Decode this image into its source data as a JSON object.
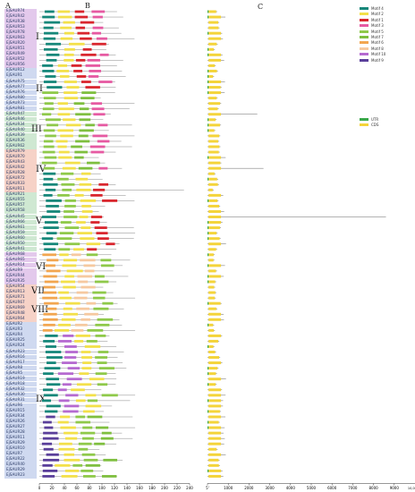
{
  "panels": {
    "a": "A",
    "b": "B",
    "c": "C"
  },
  "genes": [
    "EjSAUR74",
    "EjSAUR42",
    "EjSAUR38",
    "EjSAUR53",
    "EjSAUR78",
    "EjSAUR63",
    "EjSAUR20",
    "EjSAUR51",
    "EjSAUR49",
    "EjSAUR52",
    "EjSAUR56",
    "EjSAUR12",
    "EjSAUR1",
    "EjSAUR75",
    "EjSAUR77",
    "EjSAUR76",
    "EjSAUR80",
    "EjSAUR73",
    "EjSAUR81",
    "EjSAUR47",
    "EjSAUR46",
    "EjSAUR34",
    "EjSAUR40",
    "EjSAUR39",
    "EjSAUR36",
    "EjSAUR62",
    "EjSAUR79",
    "EjSAUR70",
    "EjSAUR43",
    "EjSAUR42",
    "EjSAUR28",
    "EjSAUR72",
    "EjSAUR33",
    "EjSAUR11",
    "EjSAUR21",
    "EjSAUR55",
    "EjSAUR57",
    "EjSAUR58",
    "EjSAUR45",
    "EjSAUR66",
    "EjSAUR61",
    "EjSAUR59",
    "EjSAUR60",
    "EjSAUR50",
    "EjSAUR41",
    "EjSAUR68",
    "EjSAUR65",
    "EjSAUR14",
    "EjSAUR9",
    "EjSAUR44",
    "EjSAUR35",
    "EjSAUR54",
    "EjSAUR13",
    "EjSAUR71",
    "EjSAUR67",
    "EjSAUR69",
    "EjSAUR48",
    "EjSAUR64",
    "EjSAUR2",
    "EjSAUR3",
    "EjSAUR4",
    "EjSAUR25",
    "EjSAUR24",
    "EjSAUR23",
    "EjSAUR16",
    "EjSAUR17",
    "EjSAUR8",
    "EjSAUR5",
    "EjSAUR19",
    "EjSAUR18",
    "EjSAUR32",
    "EjSAUR30",
    "EjSAUR31",
    "EjSAUR6",
    "EjSAUR15",
    "EjSAUR34",
    "EjSAUR26",
    "EjSAUR27",
    "EjSAUR28",
    "EjSAUR11",
    "EjSAUR29",
    "EjSAUR10",
    "EjSAUR7",
    "EjSAUR22",
    "EjSAUR40",
    "EjSAUR29",
    "EjSAUR23"
  ],
  "groups": [
    {
      "label": "I",
      "start": 0,
      "end": 11,
      "color": "#e3c9ec"
    },
    {
      "label": "II",
      "start": 11,
      "end": 19,
      "color": "#cfd9f0"
    },
    {
      "label": "III",
      "start": 19,
      "end": 26,
      "color": "#cfe8d2"
    },
    {
      "label": "IV",
      "start": 26,
      "end": 34,
      "color": "#f6d2c7"
    },
    {
      "label": "V",
      "start": 34,
      "end": 45,
      "color": "#cfe8d2"
    },
    {
      "label": "VI",
      "start": 45,
      "end": 51,
      "color": "#e3c9ec"
    },
    {
      "label": "VII",
      "start": 51,
      "end": 54,
      "color": "#f6d2c7"
    },
    {
      "label": "VIII",
      "start": 54,
      "end": 58,
      "color": "#f6d2c7"
    },
    {
      "label": "IX",
      "start": 58,
      "end": 87,
      "color": "#cfd9f0"
    }
  ],
  "motifs": [
    {
      "name": "Motif 4",
      "color": "#16877a"
    },
    {
      "name": "Motif 2",
      "color": "#f3e04a"
    },
    {
      "name": "Motif 1",
      "color": "#d9262e"
    },
    {
      "name": "Motif 3",
      "color": "#e65aa2"
    },
    {
      "name": "Motif 5",
      "color": "#8fc94a"
    },
    {
      "name": "Motif 7",
      "color": "#7fbf3f"
    },
    {
      "name": "Motif 6",
      "color": "#f2a650"
    },
    {
      "name": "Motif 8",
      "color": "#f6c9a0"
    },
    {
      "name": "Motif 10",
      "color": "#b56ad0"
    },
    {
      "name": "Motif 9",
      "color": "#5a3f9a"
    }
  ],
  "structure_legend": [
    {
      "name": "UTR",
      "color": "#3aa84a"
    },
    {
      "name": "CDS",
      "color": "#f4d43a"
    }
  ],
  "motif_axis": {
    "ticks": [
      0,
      20,
      40,
      60,
      80,
      100,
      120,
      140,
      160,
      180,
      200,
      220,
      240
    ]
  },
  "gene_axis": {
    "ticks": [
      0,
      1000,
      2000,
      3000,
      4000,
      5000,
      6000,
      7000,
      8000,
      9000
    ],
    "unit": "5'",
    "end_label": "10,000"
  }
}
